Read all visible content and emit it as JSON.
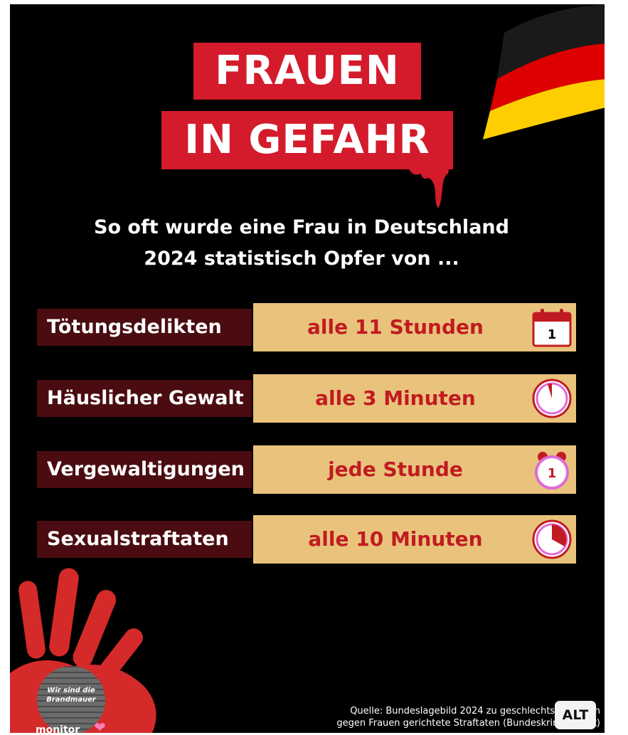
{
  "title": {
    "line1": "FRAUEN",
    "line2": "IN GEFAHR"
  },
  "subtitle": {
    "line1": "So oft wurde eine Frau in Deutschland",
    "line2": "2024 statistisch Opfer von ..."
  },
  "rows": [
    {
      "label": "Tötungsdelikten",
      "value": "alle 11 Stunden",
      "icon": "calendar-icon",
      "icon_text": "1"
    },
    {
      "label": "Häuslicher Gewalt",
      "value": "alle 3 Minuten",
      "icon": "clock-icon"
    },
    {
      "label": "Vergewaltigungen",
      "value": "jede Stunde",
      "icon": "alarm-clock-icon",
      "icon_text": "1"
    },
    {
      "label": "Sexualstraftaten",
      "value": "alle 10 Minuten",
      "icon": "pie-clock-icon"
    }
  ],
  "logo": {
    "text_line1": "Wir sind die",
    "text_line2": "Brandmauer",
    "monitor": "monitor"
  },
  "source": {
    "line1": "Quelle: Bundeslagebild 2024 zu geschlechtsspezifisch",
    "line2": "gegen Frauen gerichtete Straftaten (Bundeskriminalamt)"
  },
  "alt_badge": "ALT",
  "colors": {
    "background": "#000000",
    "title_red": "#d41b2c",
    "label_bg": "#4a0c10",
    "value_bg": "#e9c37b",
    "value_text": "#c01b22",
    "flag_black": "#111111",
    "flag_red": "#dd0000",
    "flag_gold": "#ffce00"
  }
}
